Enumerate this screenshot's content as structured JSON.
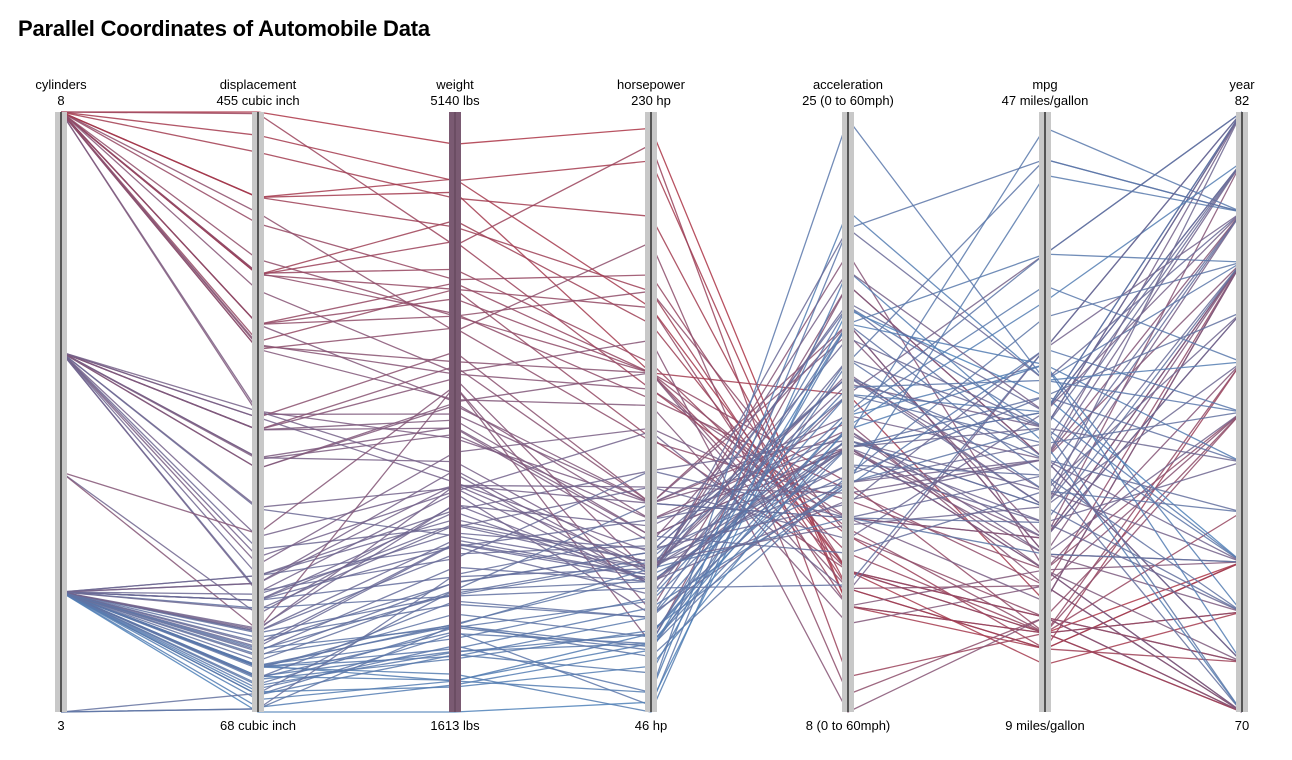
{
  "chart_data": {
    "type": "parallel-coordinates",
    "title": "Parallel Coordinates of Automobile Data",
    "color_scale": {
      "low": "#4f81b8",
      "high": "#b0303f",
      "by": "weight"
    },
    "axes": [
      {
        "key": "cylinders",
        "name": "cylinders",
        "max_label": "8",
        "min_label": "3",
        "min": 3,
        "max": 8
      },
      {
        "key": "displacement",
        "name": "displacement",
        "max_label": "455 cubic inch",
        "min_label": "68 cubic inch",
        "min": 68,
        "max": 455
      },
      {
        "key": "weight",
        "name": "weight",
        "max_label": "5140 lbs",
        "min_label": "1613 lbs",
        "min": 1613,
        "max": 5140
      },
      {
        "key": "horsepower",
        "name": "horsepower",
        "max_label": "230 hp",
        "min_label": "46 hp",
        "min": 46,
        "max": 230
      },
      {
        "key": "acceleration",
        "name": "acceleration",
        "max_label": "25 (0 to 60mph)",
        "min_label": "8 (0 to 60mph)",
        "min": 8,
        "max": 25
      },
      {
        "key": "mpg",
        "name": "mpg",
        "max_label": "47 miles/gallon",
        "min_label": "9 miles/gallon",
        "min": 9,
        "max": 47
      },
      {
        "key": "year",
        "name": "year",
        "max_label": "82",
        "min_label": "70",
        "min": 70,
        "max": 82
      }
    ],
    "records": [
      [
        8,
        455,
        4951,
        225,
        11,
        14,
        73
      ],
      [
        8,
        440,
        4735,
        215,
        11,
        13,
        73
      ],
      [
        8,
        429,
        4633,
        198,
        11.5,
        13,
        73
      ],
      [
        8,
        400,
        4464,
        175,
        11.5,
        13,
        71
      ],
      [
        8,
        400,
        4668,
        150,
        17,
        16,
        79
      ],
      [
        8,
        350,
        4502,
        165,
        12,
        14,
        70
      ],
      [
        8,
        350,
        4098,
        170,
        11,
        14,
        72
      ],
      [
        8,
        318,
        4135,
        150,
        12,
        15,
        70
      ],
      [
        8,
        318,
        3436,
        150,
        11,
        18,
        70
      ],
      [
        8,
        304,
        3672,
        150,
        11.5,
        17,
        70
      ],
      [
        8,
        302,
        3449,
        140,
        10.5,
        17,
        70
      ],
      [
        8,
        360,
        3940,
        175,
        13,
        15,
        76
      ],
      [
        8,
        351,
        4215,
        153,
        12.5,
        14,
        74
      ],
      [
        8,
        307,
        4098,
        130,
        12,
        14,
        72
      ],
      [
        8,
        262,
        3221,
        110,
        13.5,
        20,
        78
      ],
      [
        8,
        260,
        3365,
        110,
        15.5,
        19,
        79
      ],
      [
        8,
        305,
        3600,
        145,
        13.5,
        20,
        81
      ],
      [
        8,
        350,
        4380,
        145,
        13,
        13,
        77
      ],
      [
        8,
        383,
        4154,
        180,
        12,
        15,
        71
      ],
      [
        8,
        390,
        3850,
        190,
        8.5,
        15,
        71
      ],
      [
        8,
        302,
        3870,
        129,
        14,
        18,
        76
      ],
      [
        8,
        400,
        4746,
        170,
        12,
        12,
        72
      ],
      [
        8,
        318,
        3940,
        150,
        13.2,
        14,
        76
      ],
      [
        8,
        454,
        4354,
        220,
        9,
        14,
        70
      ],
      [
        8,
        340,
        3609,
        160,
        8,
        15,
        70
      ],
      [
        8,
        351,
        3955,
        142,
        14.3,
        17,
        79
      ],
      [
        8,
        318,
        4042,
        150,
        14.5,
        14,
        77
      ],
      [
        6,
        250,
        3329,
        100,
        15.5,
        18,
        71
      ],
      [
        6,
        225,
        3430,
        105,
        16,
        18,
        73
      ],
      [
        6,
        232,
        3288,
        100,
        15.5,
        18,
        70
      ],
      [
        6,
        258,
        3730,
        110,
        19,
        19,
        73
      ],
      [
        6,
        200,
        2930,
        85,
        16,
        19,
        76
      ],
      [
        6,
        250,
        3645,
        110,
        16.2,
        17,
        76
      ],
      [
        6,
        231,
        3245,
        105,
        15.4,
        20,
        79
      ],
      [
        6,
        173,
        2700,
        115,
        12.9,
        28,
        81
      ],
      [
        6,
        232,
        3085,
        90,
        17.6,
        22,
        80
      ],
      [
        6,
        181,
        2945,
        110,
        16.4,
        25,
        82
      ],
      [
        6,
        225,
        3415,
        110,
        18.7,
        20,
        79
      ],
      [
        6,
        250,
        3574,
        88,
        21,
        18,
        77
      ],
      [
        6,
        262,
        3015,
        85,
        17,
        38,
        82
      ],
      [
        6,
        199,
        2648,
        90,
        15,
        21,
        72
      ],
      [
        6,
        146,
        2515,
        120,
        13.5,
        24,
        80
      ],
      [
        6,
        163,
        3140,
        133,
        13.5,
        16,
        79
      ],
      [
        6,
        145,
        2900,
        76,
        14.5,
        25,
        81
      ],
      [
        6,
        168,
        2910,
        132,
        11.4,
        32,
        80
      ],
      [
        6,
        156,
        2800,
        120,
        15.7,
        23,
        78
      ],
      [
        6,
        250,
        3282,
        98,
        19,
        19,
        72
      ],
      [
        6,
        258,
        2962,
        95,
        17.5,
        23,
        73
      ],
      [
        5,
        131,
        2830,
        103,
        15.9,
        20,
        78
      ],
      [
        5,
        121,
        3530,
        67,
        20.1,
        25,
        80
      ],
      [
        5,
        183,
        3530,
        77,
        20.1,
        25,
        79
      ],
      [
        4,
        97,
        2130,
        88,
        14.5,
        27,
        70
      ],
      [
        4,
        113,
        2372,
        95,
        15,
        24,
        70
      ],
      [
        4,
        97,
        1835,
        46,
        20.5,
        26,
        70
      ],
      [
        4,
        140,
        2408,
        90,
        19.5,
        25,
        71
      ],
      [
        4,
        98,
        1795,
        70,
        16,
        31,
        72
      ],
      [
        4,
        79,
        2074,
        67,
        19.5,
        27,
        73
      ],
      [
        4,
        91,
        1800,
        67,
        16.4,
        31,
        75
      ],
      [
        4,
        97,
        1985,
        78,
        14.4,
        32,
        76
      ],
      [
        4,
        85,
        1965,
        70,
        16.4,
        36,
        77
      ],
      [
        4,
        89,
        1925,
        71,
        14.5,
        43,
        80
      ],
      [
        4,
        86,
        2110,
        65,
        17.9,
        44,
        80
      ],
      [
        4,
        91,
        1970,
        67,
        15.8,
        46,
        80
      ],
      [
        4,
        90,
        2085,
        48,
        21.7,
        44,
        80
      ],
      [
        4,
        68,
        1613,
        49,
        19.4,
        29,
        73
      ],
      [
        4,
        120,
        2542,
        97,
        17.5,
        22,
        79
      ],
      [
        4,
        151,
        2950,
        90,
        17.3,
        27,
        82
      ],
      [
        4,
        119,
        2300,
        92,
        14.7,
        29,
        78
      ],
      [
        4,
        135,
        2295,
        84,
        11.6,
        32,
        82
      ],
      [
        4,
        112,
        2605,
        88,
        19.6,
        28,
        82
      ],
      [
        4,
        105,
        2125,
        63,
        14.7,
        34,
        79
      ],
      [
        4,
        107,
        2464,
        86,
        15.5,
        28,
        81
      ],
      [
        4,
        108,
        2310,
        93,
        17,
        26,
        76
      ],
      [
        4,
        122,
        2835,
        86,
        14,
        25,
        73
      ],
      [
        4,
        156,
        2585,
        105,
        14.5,
        26,
        81
      ],
      [
        4,
        98,
        2120,
        66,
        15.5,
        28,
        82
      ],
      [
        4,
        120,
        2625,
        88,
        18.6,
        27,
        82
      ],
      [
        4,
        140,
        2720,
        92,
        15.7,
        22,
        77
      ],
      [
        4,
        96,
        2189,
        69,
        18,
        23,
        74
      ],
      [
        4,
        116,
        2246,
        75,
        19,
        24,
        72
      ],
      [
        4,
        140,
        2789,
        86,
        15.5,
        21,
        75
      ],
      [
        4,
        79,
        1950,
        58,
        19,
        38,
        79
      ],
      [
        4,
        104,
        2375,
        95,
        17.5,
        25,
        74
      ],
      [
        4,
        97,
        1940,
        75,
        17,
        28,
        73
      ],
      [
        4,
        81,
        1760,
        60,
        16.1,
        35,
        81
      ],
      [
        4,
        144,
        2665,
        96,
        13.9,
        32,
        82
      ],
      [
        4,
        134,
        2711,
        90,
        15.5,
        27,
        75
      ],
      [
        4,
        71,
        1773,
        65,
        19,
        31,
        71
      ],
      [
        4,
        76,
        1795,
        52,
        22.2,
        30,
        77
      ],
      [
        4,
        121,
        2945,
        115,
        14.2,
        25,
        71
      ],
      [
        4,
        110,
        2600,
        87,
        21.7,
        30,
        80
      ],
      [
        4,
        90,
        2265,
        75,
        15.5,
        29,
        75
      ],
      [
        4,
        98,
        2045,
        81,
        17.2,
        30,
        79
      ],
      [
        4,
        151,
        3035,
        88,
        20.5,
        28,
        80
      ],
      [
        4,
        83,
        2003,
        52,
        24.8,
        30,
        76
      ],
      [
        3,
        70,
        2420,
        100,
        12.5,
        23,
        80
      ],
      [
        3,
        80,
        2330,
        110,
        13.5,
        21,
        79
      ],
      [
        3,
        70,
        2124,
        90,
        13.5,
        19,
        73
      ],
      [
        4,
        101,
        2330,
        86,
        15.7,
        22,
        72
      ],
      [
        4,
        109,
        2110,
        80,
        16.5,
        38,
        82
      ],
      [
        4,
        156,
        2745,
        92,
        13.3,
        22,
        82
      ],
      [
        4,
        140,
        2585,
        82,
        18,
        27,
        81
      ]
    ]
  }
}
